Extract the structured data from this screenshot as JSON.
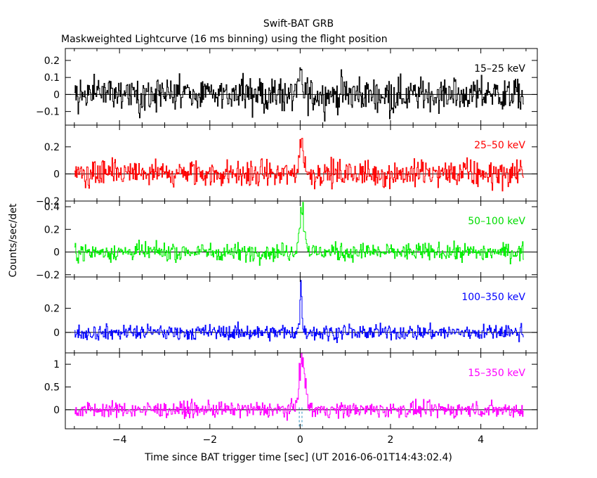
{
  "header": {
    "title": "Swift-BAT GRB",
    "subtitle": "Maskweighted Lightcurve (16 ms binning) using the flight position"
  },
  "axes": {
    "ylabel": "Counts/sec/det",
    "xlabel": "Time since BAT trigger time [sec] (UT 2016-06-01T14:43:02.4)"
  },
  "chart_data": [
    {
      "type": "line",
      "panel": "15-25 keV",
      "series": [
        {
          "name": "15–25 keV",
          "color": "#000000"
        }
      ],
      "xlim": [
        -5.2,
        5.25
      ],
      "ylim": [
        -0.18,
        0.27
      ],
      "yticks": [
        -0.1,
        0,
        0.1,
        0.2
      ],
      "yticklabels": [
        "−0.1",
        "0",
        "0.1",
        "0.2"
      ],
      "noise_sigma": 0.07,
      "peak": {
        "t": 0.02,
        "amplitude": 0.12,
        "width": 0.03
      },
      "label_color": "#000000"
    },
    {
      "type": "line",
      "panel": "25-50 keV",
      "series": [
        {
          "name": "25–50 keV",
          "color": "#ff0000"
        }
      ],
      "xlim": [
        -5.2,
        5.25
      ],
      "ylim": [
        -0.2,
        0.36
      ],
      "yticks": [
        -0.2,
        0,
        0.2
      ],
      "yticklabels": [
        "−0.2",
        "0",
        "0.2"
      ],
      "noise_sigma": 0.07,
      "peak": {
        "t": 0.03,
        "amplitude": 0.24,
        "width": 0.05
      },
      "label_color": "#ff0000"
    },
    {
      "type": "line",
      "panel": "50-100 keV",
      "series": [
        {
          "name": "50–100 keV",
          "color": "#00ee00"
        }
      ],
      "xlim": [
        -5.2,
        5.25
      ],
      "ylim": [
        -0.22,
        0.45
      ],
      "yticks": [
        -0.2,
        0,
        0.2,
        0.4
      ],
      "yticklabels": [
        "−0.2",
        "0",
        "0.2",
        "0.4"
      ],
      "noise_sigma": 0.055,
      "peak": {
        "t": 0.04,
        "amplitude": 0.36,
        "width": 0.06
      },
      "label_color": "#00dd00"
    },
    {
      "type": "line",
      "panel": "100-350 keV",
      "series": [
        {
          "name": "100–350 keV",
          "color": "#0000ff"
        }
      ],
      "xlim": [
        -5.2,
        5.25
      ],
      "ylim": [
        -0.17,
        0.46
      ],
      "yticks": [
        0,
        0.2
      ],
      "yticklabels": [
        "0",
        "0.2"
      ],
      "noise_sigma": 0.045,
      "peak": {
        "t": 0.02,
        "amplitude": 0.35,
        "width": 0.025
      },
      "label_color": "#0000ff"
    },
    {
      "type": "line",
      "panel": "15-350 keV",
      "series": [
        {
          "name": "15–350 keV",
          "color": "#ff00ff"
        }
      ],
      "xlim": [
        -5.2,
        5.25
      ],
      "ylim": [
        -0.42,
        1.25
      ],
      "yticks": [
        0,
        0.5,
        1
      ],
      "yticklabels": [
        "0",
        "0.5",
        "1"
      ],
      "noise_sigma": 0.12,
      "peak": {
        "t": 0.04,
        "amplitude": 1.02,
        "width": 0.07
      },
      "label_color": "#ff00ff"
    }
  ],
  "xticks": [
    -4,
    -2,
    0,
    2,
    4
  ],
  "xticklabels": [
    "−4",
    "−2",
    "0",
    "2",
    "4"
  ],
  "time_range": [
    -5.0,
    4.95
  ],
  "bin_width": 0.016,
  "trigger_markers": {
    "times": [
      -0.02,
      0.04
    ],
    "color": "#2a8fbd"
  }
}
